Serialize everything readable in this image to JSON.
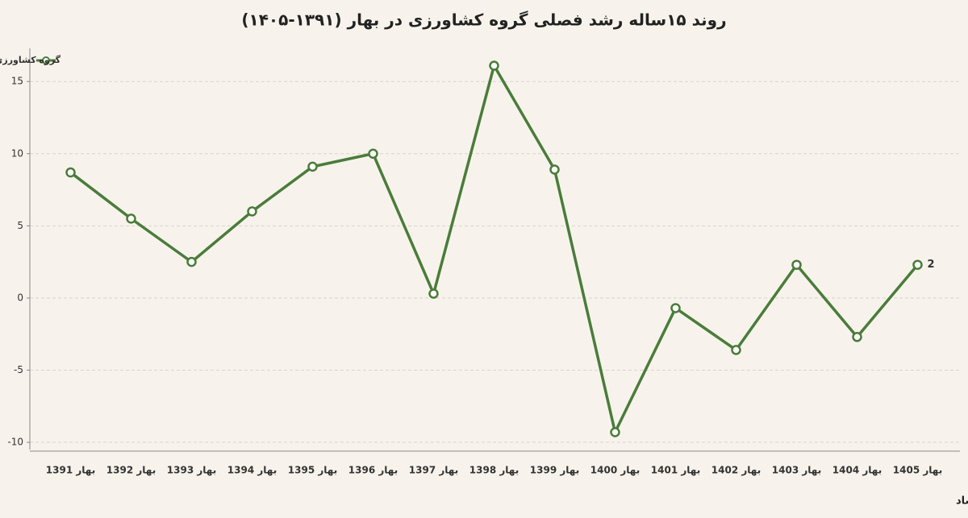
{
  "chart_data": {
    "type": "line",
    "title": "روند ۱۵ساله رشد فصلی گروه کشاورزی در بهار (۱۳۹۱-۱۴۰۵)",
    "source": "منبع: دنیای اقتصاد",
    "categories": [
      "بهار 1391",
      "بهار 1392",
      "بهار 1393",
      "بهار 1394",
      "بهار 1395",
      "بهار 1396",
      "بهار 1397",
      "بهار 1398",
      "بهار 1399",
      "بهار 1400",
      "بهار 1401",
      "بهار 1402",
      "بهار 1403",
      "بهار 1404",
      "بهار 1405"
    ],
    "series": [
      {
        "name": "گروه کشاورزی",
        "color": "#4a7c3a",
        "values": [
          8.7,
          5.5,
          2.5,
          6.0,
          9.1,
          10.0,
          0.3,
          16.1,
          8.9,
          -9.3,
          -0.7,
          -3.6,
          2.3,
          -2.7,
          2.3
        ],
        "value_labels": [
          null,
          null,
          null,
          null,
          null,
          null,
          null,
          null,
          null,
          null,
          null,
          null,
          null,
          null,
          "2"
        ]
      }
    ],
    "ylim": [
      -10.5,
      17.3
    ],
    "yticks": [
      -10,
      -5,
      0,
      5,
      10,
      15
    ],
    "grid": true,
    "legend": "top-left"
  }
}
